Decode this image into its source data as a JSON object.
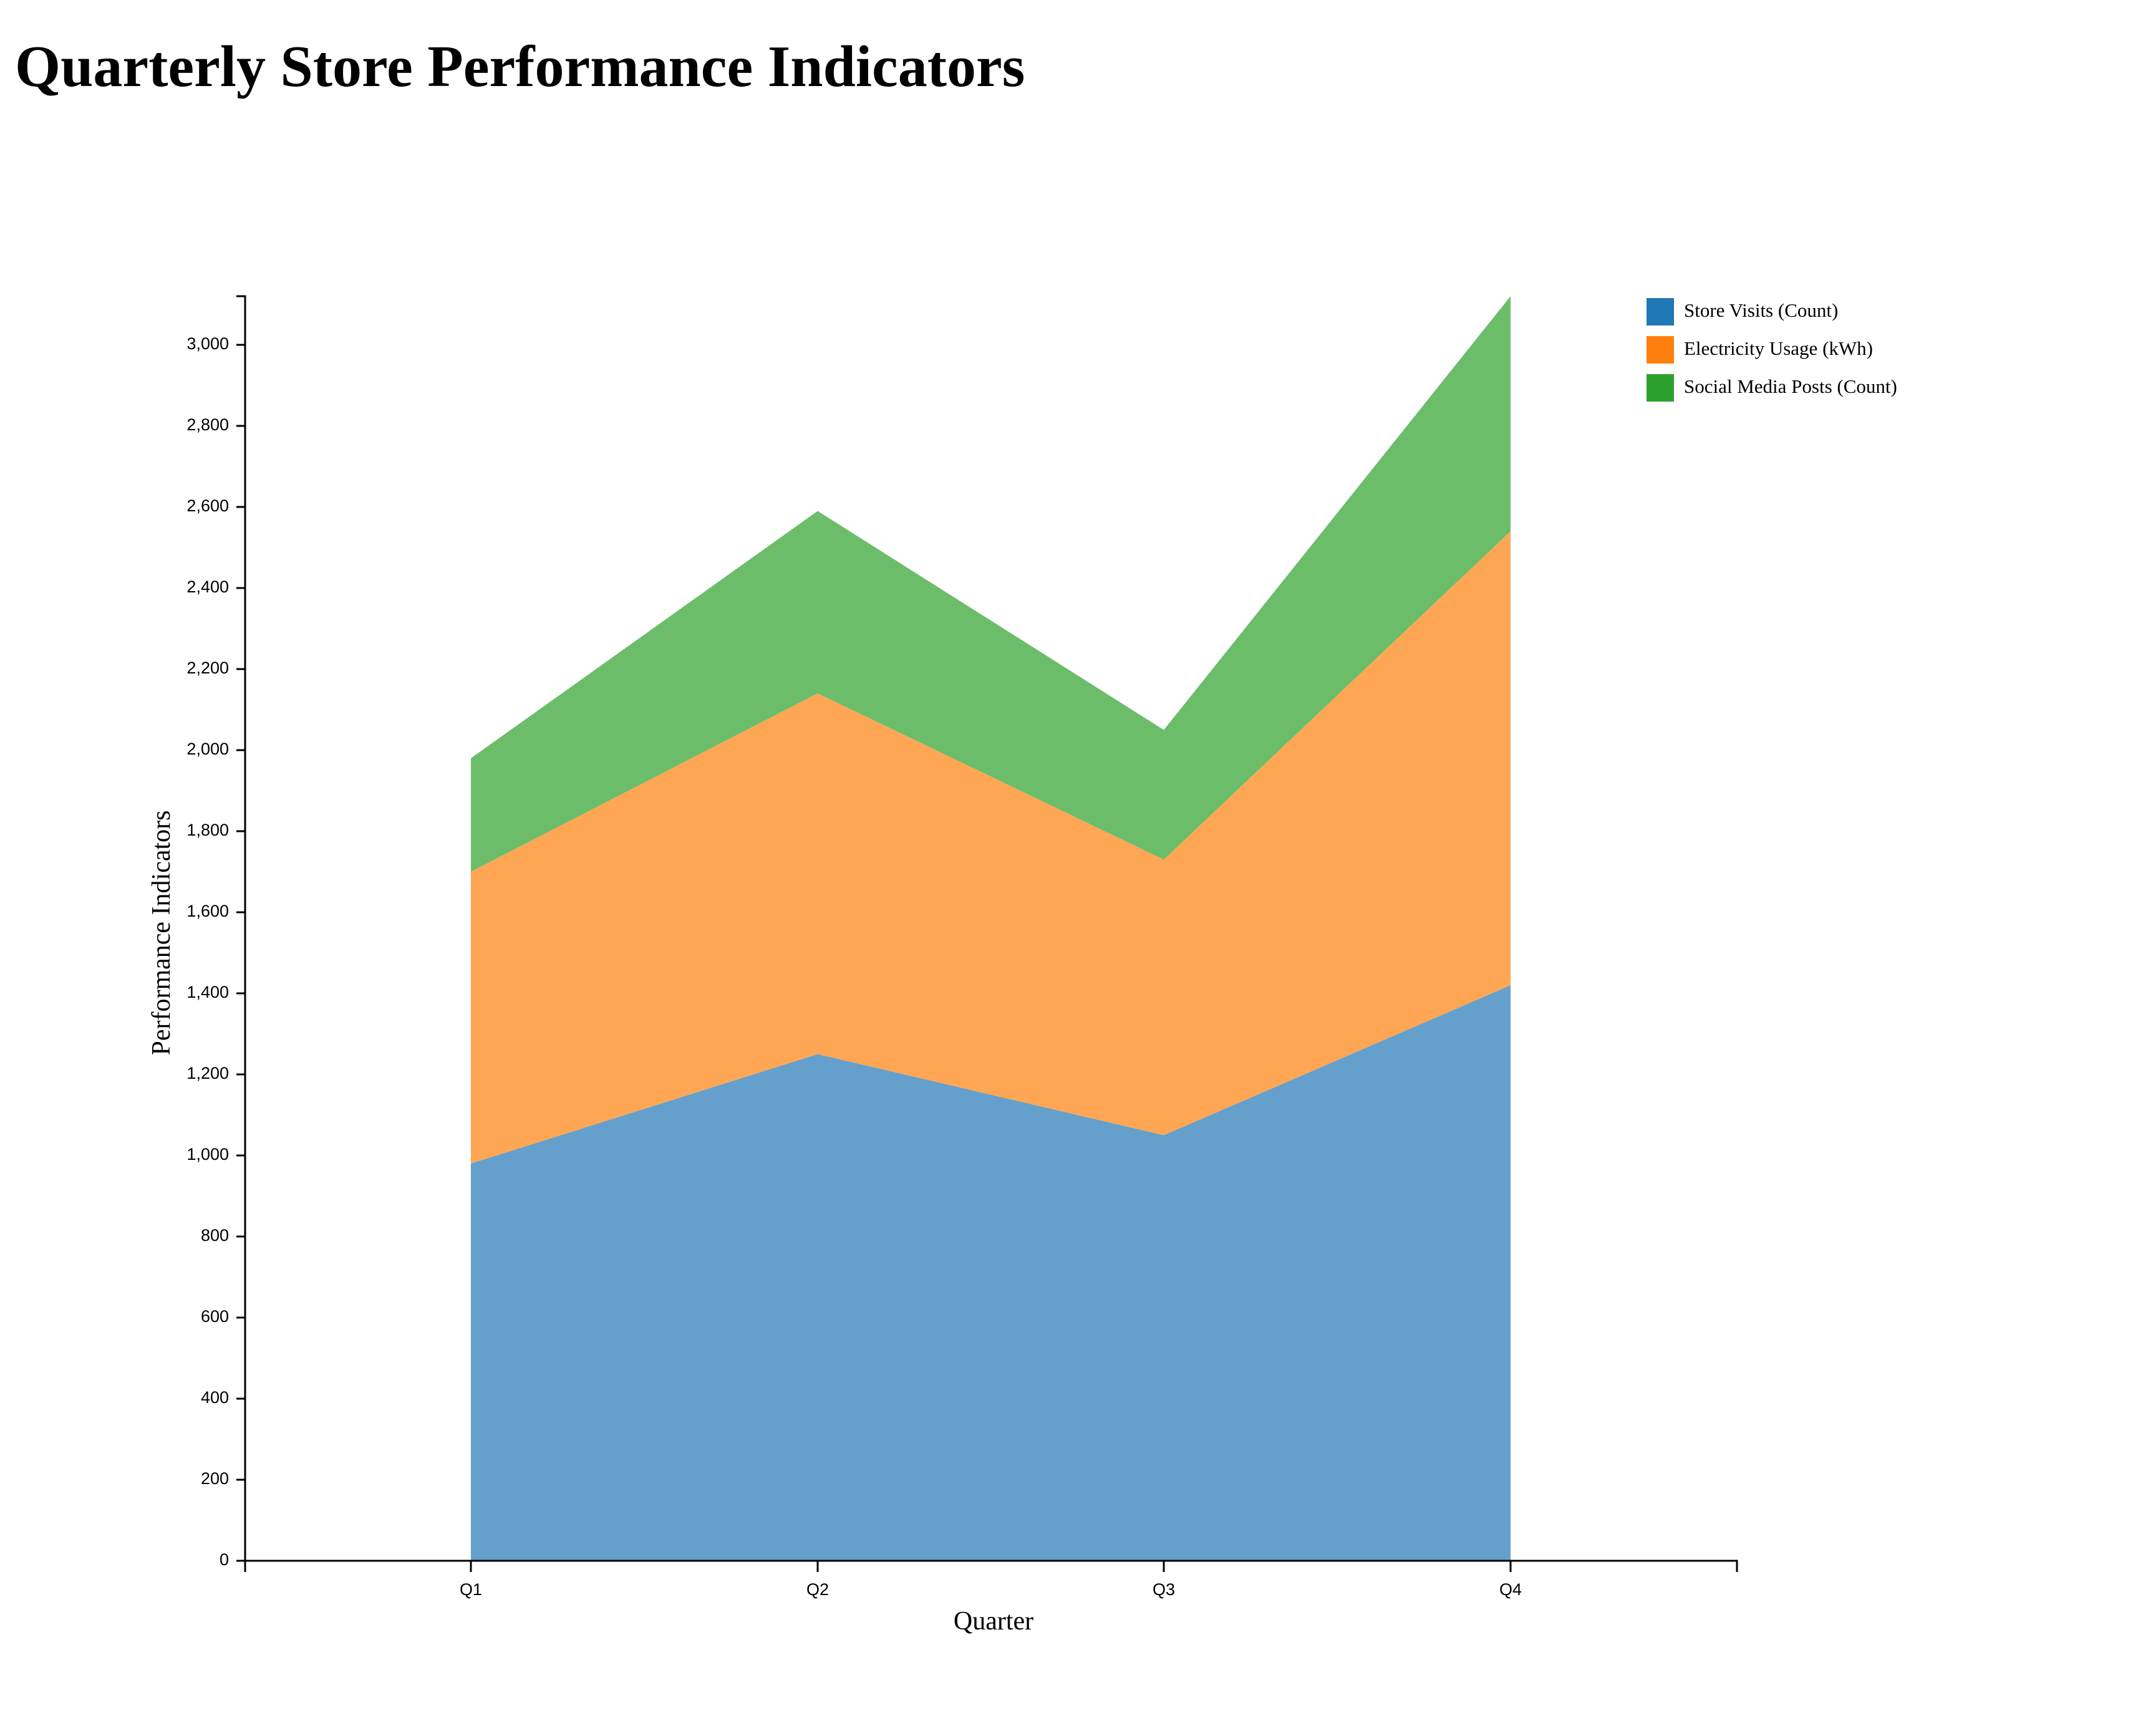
{
  "title": "Quarterly Store Performance Indicators",
  "chart_data": {
    "type": "area",
    "stacked": true,
    "title": "Quarterly Store Performance Indicators",
    "xlabel": "Quarter",
    "ylabel": "Performance Indicators",
    "categories": [
      "Q1",
      "Q2",
      "Q3",
      "Q4"
    ],
    "ylim": [
      0,
      3120
    ],
    "yticks": [
      0,
      200,
      400,
      600,
      800,
      1000,
      1200,
      1400,
      1600,
      1800,
      2000,
      2200,
      2400,
      2600,
      2800,
      3000
    ],
    "ytick_labels": [
      "0",
      "200",
      "400",
      "600",
      "800",
      "1,000",
      "1,200",
      "1,400",
      "1,600",
      "1,800",
      "2,000",
      "2,200",
      "2,400",
      "2,600",
      "2,800",
      "3,000"
    ],
    "grid": false,
    "legend_position": "top-right",
    "series": [
      {
        "name": "Store Visits (Count)",
        "color": "#1f77b4",
        "fill": "#64a0cb",
        "values": [
          980,
          1250,
          1050,
          1420
        ]
      },
      {
        "name": "Electricity Usage (kWh)",
        "color": "#ff7f0e",
        "fill": "#ffa655",
        "values": [
          720,
          890,
          680,
          1120
        ]
      },
      {
        "name": "Social Media Posts (Count)",
        "color": "#2ca02c",
        "fill": "#6cbd6a",
        "values": [
          280,
          450,
          320,
          580
        ]
      }
    ]
  }
}
